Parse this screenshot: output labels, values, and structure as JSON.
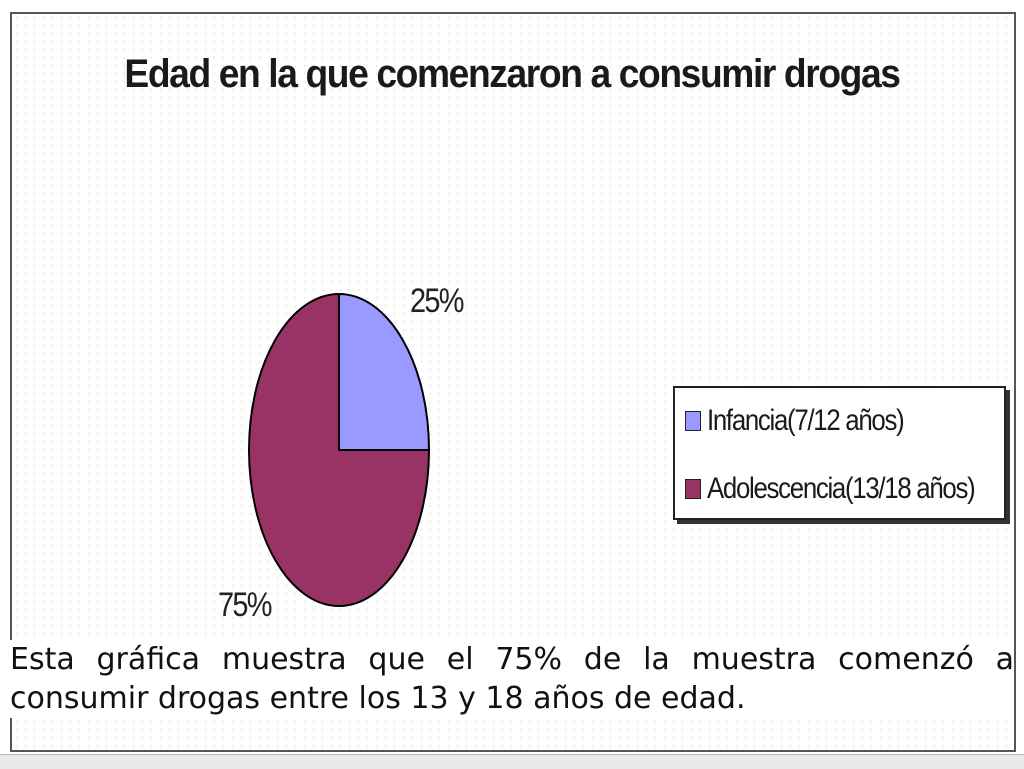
{
  "chart_data": {
    "type": "pie",
    "title": "Edad en la que comenzaron a consumir drogas",
    "slices": [
      {
        "label": "Infancia(7/12 años)",
        "value": 25,
        "value_label": "25%",
        "color": "#9999ff"
      },
      {
        "label": "Adolescencia(13/18 años)",
        "value": 75,
        "value_label": "75%",
        "color": "#993366"
      }
    ],
    "legend_position": "right",
    "three_d": true
  },
  "caption": "Esta gráfica muestra que el 75% de la muestra comenzó a consumir drogas entre los 13 y 18 años de edad.",
  "colors": {
    "frame_border": "#555555",
    "pie_outline": "#000000"
  }
}
